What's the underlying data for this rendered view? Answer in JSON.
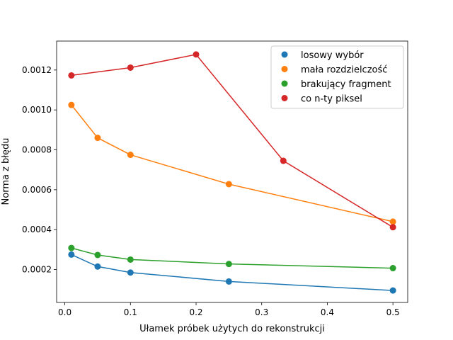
{
  "chart_data": {
    "type": "scatter",
    "xlabel": "Ułamek próbek użytych do rekonstrukcji",
    "ylabel": "Norma z błędu",
    "xlim": [
      -0.0125,
      0.5225
    ],
    "ylim": [
      3.5e-05,
      0.001345
    ],
    "x_ticks": [
      0.0,
      0.1,
      0.2,
      0.3,
      0.4,
      0.5
    ],
    "x_tick_labels": [
      "0.0",
      "0.1",
      "0.2",
      "0.3",
      "0.4",
      "0.5"
    ],
    "y_ticks": [
      0.0002,
      0.0004,
      0.0006,
      0.0008,
      0.001,
      0.0012
    ],
    "y_tick_labels": [
      "0.0002",
      "0.0004",
      "0.0006",
      "0.0008",
      "0.0010",
      "0.0012"
    ],
    "grid": false,
    "legend_position": "top-right",
    "series": [
      {
        "name": "losowy wybór",
        "color": "#1f77b4",
        "points": [
          [
            0.01,
            0.000275
          ],
          [
            0.05,
            0.000215
          ],
          [
            0.1,
            0.000185
          ],
          [
            0.25,
            0.00014
          ],
          [
            0.5,
            9.5e-05
          ]
        ]
      },
      {
        "name": "mała rozdzielczość",
        "color": "#ff7f0e",
        "points": [
          [
            0.01,
            0.001025
          ],
          [
            0.05,
            0.00086
          ],
          [
            0.1,
            0.000775
          ],
          [
            0.25,
            0.000628
          ],
          [
            0.5,
            0.00044
          ]
        ]
      },
      {
        "name": "brakujący fragment",
        "color": "#2ca02c",
        "points": [
          [
            0.01,
            0.000308
          ],
          [
            0.05,
            0.000273
          ],
          [
            0.1,
            0.00025
          ],
          [
            0.25,
            0.000228
          ],
          [
            0.5,
            0.000207
          ]
        ]
      },
      {
        "name": "co n-ty piksel",
        "color": "#d62728",
        "points": [
          [
            0.01,
            0.001173
          ],
          [
            0.1,
            0.001212
          ],
          [
            0.2,
            0.001278
          ],
          [
            0.333,
            0.000745
          ],
          [
            0.5,
            0.000412
          ]
        ]
      }
    ]
  }
}
